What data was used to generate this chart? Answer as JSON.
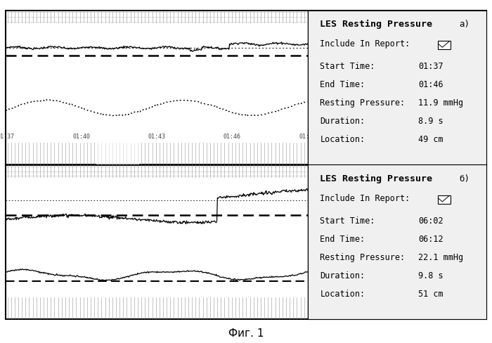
{
  "title": "Фиг. 1",
  "panel_a": {
    "label": "a)",
    "title": "LES Resting Pressure",
    "include_label": "Include In Report:",
    "start_time_label": "Start Time:",
    "start_time": "01:37",
    "end_time_label": "End Time:",
    "end_time": "01:46",
    "resting_label": "Resting Pressure:",
    "resting_value": "11.9 mmHg",
    "duration_label": "Duration:",
    "duration_value": "8.9 s",
    "location_label": "Location:",
    "location_value": "49 cm"
  },
  "panel_b": {
    "label": "б)",
    "title": "LES Resting Pressure",
    "include_label": "Include In Report:",
    "start_time_label": "Start Time:",
    "start_time": "06:02",
    "end_time_label": "End Time:",
    "end_time": "06:12",
    "resting_label": "Resting Pressure:",
    "resting_value": "22.1 mmHg",
    "duration_label": "Duration:",
    "duration_value": "9.8 s",
    "location_label": "Location:",
    "location_value": "51 cm"
  },
  "bg_white": "#ffffff",
  "bg_light_gray": "#d8d8d8",
  "bg_mid_gray": "#c0c0c0",
  "border_color": "#000000",
  "chart_bg": "#ffffff",
  "info_bg": "#f0f0f0",
  "hatch_bg": "#b8b8b8",
  "time_bar_bg": "#d0d0d0"
}
